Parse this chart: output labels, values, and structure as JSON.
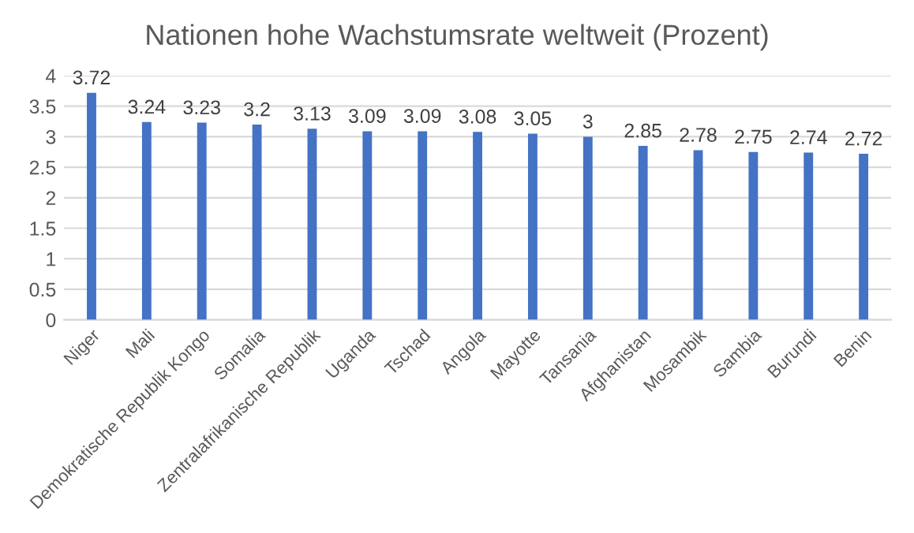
{
  "chart_data": {
    "type": "bar",
    "title": "Nationen hohe Wachstumsrate weltweit (Prozent)",
    "categories": [
      "Niger",
      "Mali",
      "Demokratische Republik Kongo",
      "Somalia",
      "Zentralafrikanische Republik",
      "Uganda",
      "Tschad",
      "Angola",
      "Mayotte",
      "Tansania",
      "Afghanistan",
      "Mosambik",
      "Sambia",
      "Burundi",
      "Benin"
    ],
    "values": [
      3.72,
      3.24,
      3.23,
      3.2,
      3.13,
      3.09,
      3.09,
      3.08,
      3.05,
      3,
      2.85,
      2.78,
      2.75,
      2.74,
      2.72
    ],
    "color": "#4472c4",
    "ylim": [
      0,
      4
    ],
    "yticks": [
      0,
      0.5,
      1,
      1.5,
      2,
      2.5,
      3,
      3.5,
      4
    ],
    "grid": "y",
    "data_labels": true
  }
}
